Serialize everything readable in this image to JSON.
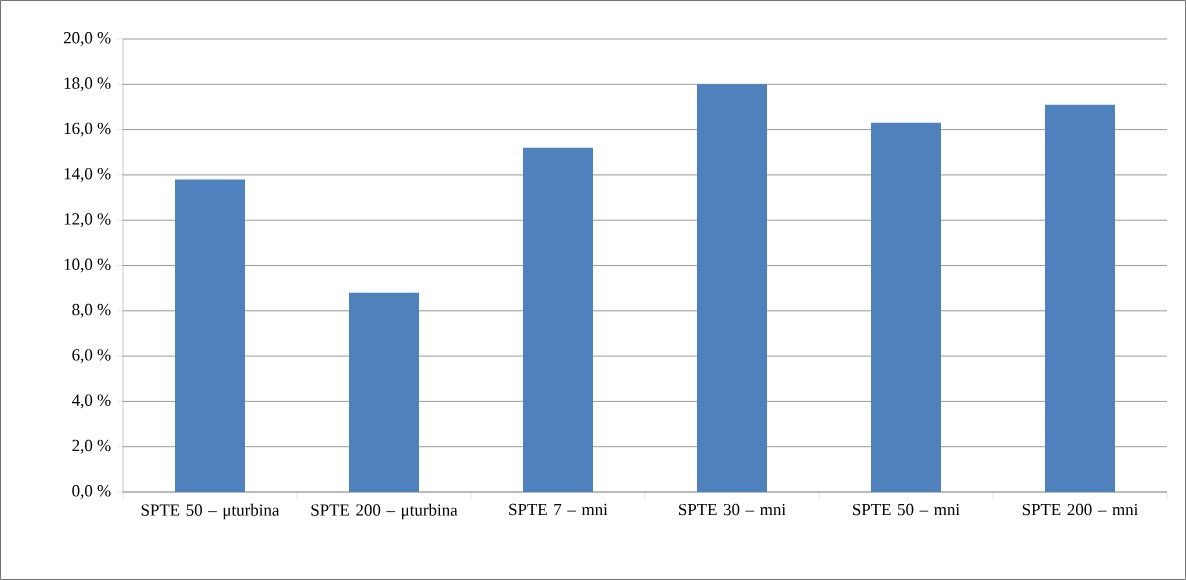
{
  "chart_data": {
    "type": "bar",
    "categories": [
      "SPTE 50 – μturbina",
      "SPTE 200 – μturbina",
      "SPTE 7 – mni",
      "SPTE 30 – mni",
      "SPTE 50 – mni",
      "SPTE 200 – mni"
    ],
    "values": [
      13.8,
      8.8,
      15.2,
      18.0,
      16.3,
      17.1
    ],
    "color": "#4f81bd",
    "ylim": [
      0,
      20
    ],
    "yticks": [
      {
        "value": 0,
        "label": "0,0 %"
      },
      {
        "value": 2,
        "label": "2,0 %"
      },
      {
        "value": 4,
        "label": "4,0 %"
      },
      {
        "value": 6,
        "label": "6,0 %"
      },
      {
        "value": 8,
        "label": "8,0 %"
      },
      {
        "value": 10,
        "label": "10,0 %"
      },
      {
        "value": 12,
        "label": "12,0 %"
      },
      {
        "value": 14,
        "label": "14,0 %"
      },
      {
        "value": 16,
        "label": "16,0 %"
      },
      {
        "value": 18,
        "label": "18,0 %"
      },
      {
        "value": 20,
        "label": "20,0 %"
      }
    ],
    "grid": "y"
  }
}
